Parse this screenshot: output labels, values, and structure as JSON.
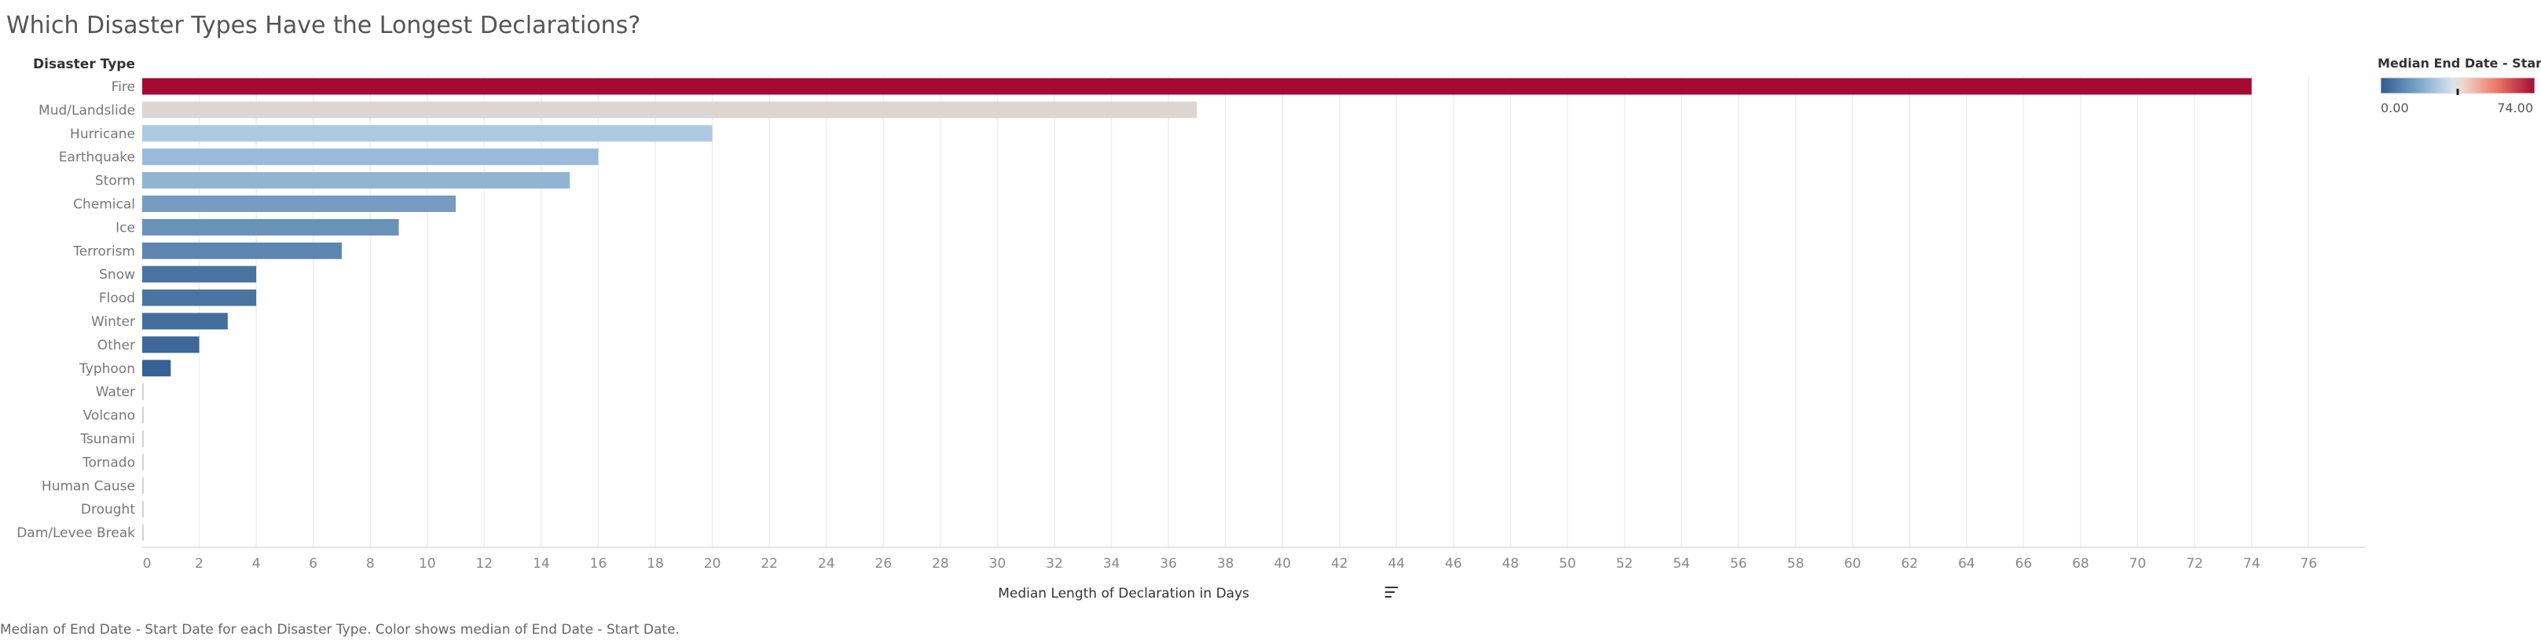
{
  "chart_data": {
    "type": "bar",
    "orientation": "horizontal",
    "title": "Which Disaster Types Have the Longest Declarations?",
    "row_header": "Disaster Type",
    "categories": [
      "Fire",
      "Mud/Landslide",
      "Hurricane",
      "Earthquake",
      "Storm",
      "Chemical",
      "Ice",
      "Terrorism",
      "Snow",
      "Flood",
      "Winter",
      "Other",
      "Typhoon",
      "Water",
      "Volcano",
      "Tsunami",
      "Tornado",
      "Human Cause",
      "Drought",
      "Dam/Levee Break"
    ],
    "values": [
      74,
      37,
      20,
      16,
      15,
      11,
      9,
      7,
      4,
      4,
      3,
      2,
      1,
      0,
      0,
      0,
      0,
      0,
      0,
      0
    ],
    "xlabel": "Median Length of Declaration in Days",
    "xlim": [
      0,
      76
    ],
    "x_ticks": [
      "0",
      "2",
      "4",
      "6",
      "8",
      "10",
      "12",
      "14",
      "16",
      "18",
      "20",
      "22",
      "24",
      "26",
      "28",
      "30",
      "32",
      "34",
      "36",
      "38",
      "40",
      "42",
      "44",
      "46",
      "48",
      "50",
      "52",
      "54",
      "56",
      "58",
      "60",
      "62",
      "64",
      "66",
      "68",
      "70",
      "72",
      "74",
      "76"
    ],
    "grid": true,
    "caption": "Median of End Date - Start Date for each Disaster Type.  Color shows median of End Date - Start Date.",
    "color_legend": {
      "title": "Median End Date - Star..",
      "min_label": "0.00",
      "max_label": "74.00",
      "min": 0,
      "max": 74,
      "center": 37,
      "placement": "top-right"
    },
    "colors": {
      "low": "#2f5b8f",
      "mid_low": "#a9c9e3",
      "mid": "#ddd5d3",
      "mid_high": "#f4a08c",
      "high": "#a40a34"
    }
  }
}
